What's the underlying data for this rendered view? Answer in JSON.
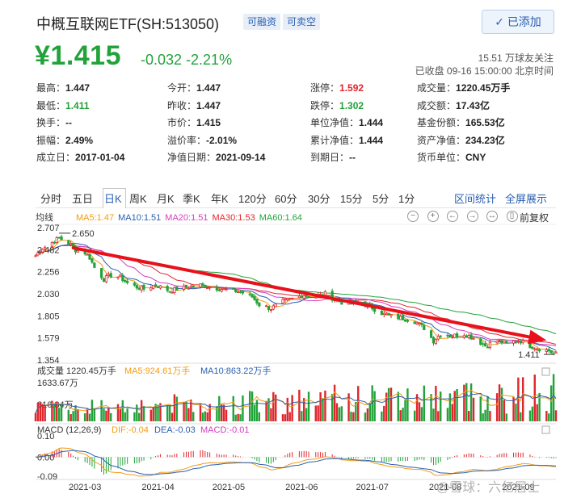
{
  "header": {
    "title": "中概互联网ETF(SH:513050)",
    "tag_margin": "可融资",
    "tag_short": "可卖空",
    "add_button": "已添加",
    "price": "¥1.415",
    "change": "-0.032 -2.21%",
    "followers": "15.51 万球友关注",
    "status": "已收盘 09-16 15:00:00 北京时间"
  },
  "quote": [
    [
      {
        "k": "最高：",
        "v": "1.447",
        "c": ""
      },
      {
        "k": "今开：",
        "v": "1.447",
        "c": ""
      },
      {
        "k": "涨停：",
        "v": "1.592",
        "c": "red"
      },
      {
        "k": "成交量：",
        "v": "1220.45万手",
        "c": ""
      }
    ],
    [
      {
        "k": "最低：",
        "v": "1.411",
        "c": "green"
      },
      {
        "k": "昨收：",
        "v": "1.447",
        "c": ""
      },
      {
        "k": "跌停：",
        "v": "1.302",
        "c": "green"
      },
      {
        "k": "成交额：",
        "v": "17.43亿",
        "c": ""
      }
    ],
    [
      {
        "k": "换手：",
        "v": "--",
        "c": ""
      },
      {
        "k": "市价：",
        "v": "1.415",
        "c": ""
      },
      {
        "k": "单位净值：",
        "v": "1.444",
        "c": ""
      },
      {
        "k": "基金份额：",
        "v": "165.53亿",
        "c": ""
      }
    ],
    [
      {
        "k": "振幅：",
        "v": "2.49%",
        "c": ""
      },
      {
        "k": "溢价率：",
        "v": "-2.01%",
        "c": ""
      },
      {
        "k": "累计净值：",
        "v": "1.444",
        "c": ""
      },
      {
        "k": "资产净值：",
        "v": "234.23亿",
        "c": ""
      }
    ],
    [
      {
        "k": "成立日：",
        "v": "2017-01-04",
        "c": ""
      },
      {
        "k": "净值日期：",
        "v": "2021-09-14",
        "c": ""
      },
      {
        "k": "到期日：",
        "v": "--",
        "c": ""
      },
      {
        "k": "货币单位：",
        "v": "CNY",
        "c": ""
      }
    ]
  ],
  "tabs": [
    "分时",
    "五日",
    "日K",
    "周K",
    "月K",
    "季K",
    "年K",
    "120分",
    "60分",
    "30分",
    "15分",
    "5分",
    "1分"
  ],
  "active_tab": "日K",
  "right_links": [
    "区间统计",
    "全屏展示"
  ],
  "adjust_label": "前复权",
  "tools": [
    "−",
    "+",
    "←",
    "→",
    "↔",
    "▯"
  ],
  "ma_legend": [
    {
      "text": "均线",
      "color": "#333333"
    },
    {
      "text": "MA5:1.47",
      "color": "#f39c12"
    },
    {
      "text": "MA10:1.51",
      "color": "#2a5fb0"
    },
    {
      "text": "MA20:1.51",
      "color": "#d63cbf"
    },
    {
      "text": "MA30:1.53",
      "color": "#e0262d"
    },
    {
      "text": "MA60:1.64",
      "color": "#22a33a"
    }
  ],
  "colors": {
    "up": "#e0262d",
    "down": "#22a33a",
    "ma5": "#f39c12",
    "ma10": "#2a5fb0",
    "ma20": "#d63cbf",
    "ma30": "#e0262d",
    "ma60": "#22a33a",
    "arrow": "#e8101a"
  },
  "chart_data": [
    {
      "type": "candlestick",
      "title": "",
      "y_ticks": [
        "2.707",
        "2.482",
        "2.256",
        "2.030",
        "1.805",
        "1.579",
        "1.354"
      ],
      "ylim": [
        1.354,
        2.707
      ],
      "x_ticks": [
        "2021-03",
        "2021-04",
        "2021-05",
        "2021-06",
        "2021-07",
        "2021-08",
        "2021-09"
      ],
      "annotations": [
        {
          "label": "2.650",
          "value": 2.65
        },
        {
          "label": "1.411",
          "value": 1.411
        }
      ],
      "close_path": [
        [
          "2021-02-08",
          2.42
        ],
        [
          "2021-02-10",
          2.48
        ],
        [
          "2021-02-18",
          2.6
        ],
        [
          "2021-02-22",
          2.55
        ],
        [
          "2021-02-25",
          2.48
        ],
        [
          "2021-03-01",
          2.45
        ],
        [
          "2021-03-03",
          2.4
        ],
        [
          "2021-03-05",
          2.3
        ],
        [
          "2021-03-09",
          2.18
        ],
        [
          "2021-03-12",
          2.22
        ],
        [
          "2021-03-16",
          2.2
        ],
        [
          "2021-03-19",
          2.14
        ],
        [
          "2021-03-23",
          2.1
        ],
        [
          "2021-03-26",
          2.08
        ],
        [
          "2021-03-31",
          2.12
        ],
        [
          "2021-04-06",
          2.06
        ],
        [
          "2021-04-09",
          2.08
        ],
        [
          "2021-04-14",
          2.1
        ],
        [
          "2021-04-19",
          2.12
        ],
        [
          "2021-04-23",
          2.1
        ],
        [
          "2021-04-28",
          2.08
        ],
        [
          "2021-05-06",
          2.05
        ],
        [
          "2021-05-11",
          2.0
        ],
        [
          "2021-05-14",
          1.92
        ],
        [
          "2021-05-19",
          1.88
        ],
        [
          "2021-05-24",
          1.95
        ],
        [
          "2021-05-28",
          1.98
        ],
        [
          "2021-06-02",
          2.02
        ],
        [
          "2021-06-07",
          2.0
        ],
        [
          "2021-06-11",
          2.03
        ],
        [
          "2021-06-16",
          1.96
        ],
        [
          "2021-06-21",
          1.92
        ],
        [
          "2021-06-25",
          1.95
        ],
        [
          "2021-06-30",
          1.9
        ],
        [
          "2021-07-06",
          1.82
        ],
        [
          "2021-07-09",
          1.8
        ],
        [
          "2021-07-14",
          1.78
        ],
        [
          "2021-07-19",
          1.75
        ],
        [
          "2021-07-23",
          1.68
        ],
        [
          "2021-07-27",
          1.55
        ],
        [
          "2021-07-30",
          1.62
        ],
        [
          "2021-08-04",
          1.6
        ],
        [
          "2021-08-09",
          1.62
        ],
        [
          "2021-08-13",
          1.58
        ],
        [
          "2021-08-18",
          1.5
        ],
        [
          "2021-08-23",
          1.55
        ],
        [
          "2021-08-27",
          1.52
        ],
        [
          "2021-09-01",
          1.56
        ],
        [
          "2021-09-06",
          1.5
        ],
        [
          "2021-09-10",
          1.47
        ],
        [
          "2021-09-14",
          1.45
        ],
        [
          "2021-09-16",
          1.415
        ]
      ],
      "series": [
        {
          "name": "MA5",
          "value": 1.47
        },
        {
          "name": "MA10",
          "value": 1.51
        },
        {
          "name": "MA20",
          "value": 1.51
        },
        {
          "name": "MA30",
          "value": 1.53
        },
        {
          "name": "MA60",
          "value": 1.64
        }
      ]
    },
    {
      "type": "bar",
      "title": "成交量 1220.45万手",
      "legend": [
        {
          "text": "MA5:924.61万手",
          "color": "#f39c12"
        },
        {
          "text": "MA10:863.22万手",
          "color": "#2a5fb0"
        }
      ],
      "y_ticks": [
        "1633.67万",
        "816.84万"
      ],
      "ylim": [
        0,
        1633.67
      ],
      "unit": "万手"
    },
    {
      "type": "line",
      "title": "MACD (12,26,9)",
      "legend": [
        {
          "text": "DIF:-0.04",
          "color": "#f39c12"
        },
        {
          "text": "DEA:-0.03",
          "color": "#2a5fb0"
        },
        {
          "text": "MACD:-0.01",
          "color": "#d63cbf"
        }
      ],
      "y_ticks": [
        "0.10",
        "0.00",
        "-0.09"
      ],
      "ylim": [
        -0.09,
        0.1
      ]
    }
  ],
  "watermark": "@雪球：六亿居士"
}
